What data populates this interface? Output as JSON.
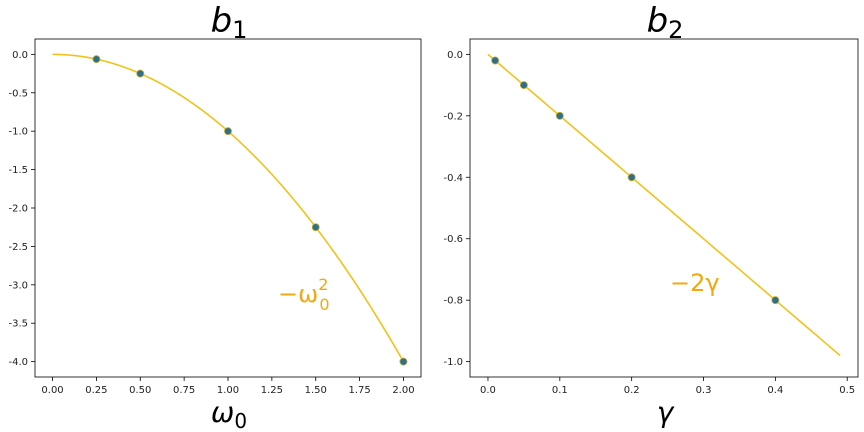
{
  "chart_data": [
    {
      "type": "scatter",
      "title": "b",
      "title_sub": "1",
      "xlabel": "ω",
      "xlabel_sub": "0",
      "ylabel": "",
      "xlim": [
        -0.1,
        2.1
      ],
      "ylim": [
        -4.2,
        0.2
      ],
      "xticks": [
        "0.00",
        "0.25",
        "0.50",
        "0.75",
        "1.00",
        "1.25",
        "1.50",
        "1.75",
        "2.00"
      ],
      "yticks": [
        "0.0",
        "-0.5",
        "-1.0",
        "-1.5",
        "-2.0",
        "-2.5",
        "-3.0",
        "-3.5",
        "-4.0"
      ],
      "series": [
        {
          "kind": "points",
          "x": [
            0.25,
            0.5,
            1.0,
            1.5,
            2.0
          ],
          "y": [
            -0.0625,
            -0.25,
            -1.0,
            -2.25,
            -4.0
          ],
          "color": "#2e6f8e"
        },
        {
          "kind": "curve",
          "name": "−ω0²",
          "formula": "-x^2",
          "x_range": [
            0.0,
            2.0
          ],
          "color": "#f2c21a"
        }
      ],
      "annotation": {
        "base": "−ω",
        "sup": "2",
        "sub": "0"
      },
      "grid": false
    },
    {
      "type": "scatter",
      "title": "b",
      "title_sub": "2",
      "xlabel": "γ",
      "xlabel_sub": "",
      "ylabel": "",
      "xlim": [
        -0.025,
        0.515
      ],
      "ylim": [
        -1.05,
        0.05
      ],
      "xticks": [
        "0.0",
        "0.1",
        "0.2",
        "0.3",
        "0.4",
        "0.5"
      ],
      "yticks": [
        "0.0",
        "-0.2",
        "-0.4",
        "-0.6",
        "-0.8",
        "-1.0"
      ],
      "series": [
        {
          "kind": "points",
          "x": [
            0.01,
            0.05,
            0.1,
            0.2,
            0.4
          ],
          "y": [
            -0.02,
            -0.1,
            -0.2,
            -0.4,
            -0.8
          ],
          "color": "#2e6f8e"
        },
        {
          "kind": "curve",
          "name": "−2γ",
          "formula": "-2x",
          "x_range": [
            0.0,
            0.49
          ],
          "color": "#f2c21a"
        }
      ],
      "annotation": {
        "base": "−2γ",
        "sup": "",
        "sub": ""
      },
      "grid": false
    }
  ]
}
